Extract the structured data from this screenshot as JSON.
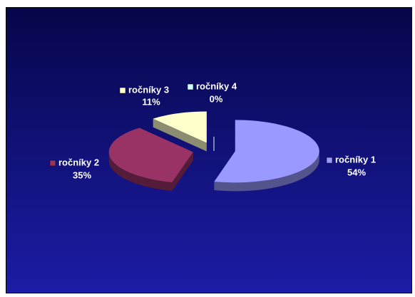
{
  "chart_data": {
    "type": "pie",
    "categories": [
      "ročníky 1",
      "ročníky 2",
      "ročníky 3",
      "ročníky 4"
    ],
    "values": [
      54,
      35,
      11,
      0
    ],
    "value_labels": [
      "54%",
      "35%",
      "11%",
      "0%"
    ],
    "colors": [
      "#9999ff",
      "#993366",
      "#ffffcc",
      "#ccffff"
    ],
    "exploded": true,
    "three_d": true
  }
}
